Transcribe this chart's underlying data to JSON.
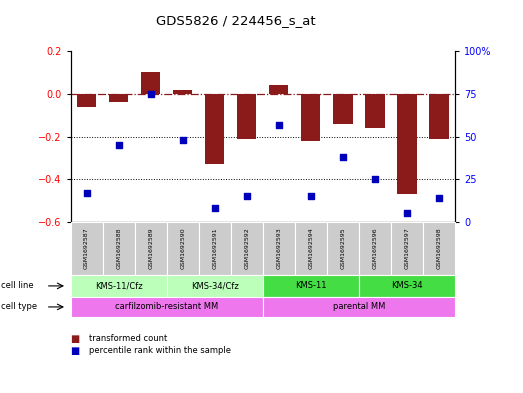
{
  "title": "GDS5826 / 224456_s_at",
  "samples": [
    "GSM1692587",
    "GSM1692588",
    "GSM1692589",
    "GSM1692590",
    "GSM1692591",
    "GSM1692592",
    "GSM1692593",
    "GSM1692594",
    "GSM1692595",
    "GSM1692596",
    "GSM1692597",
    "GSM1692598"
  ],
  "bar_values": [
    -0.06,
    -0.04,
    0.1,
    0.02,
    -0.33,
    -0.21,
    0.04,
    -0.22,
    -0.14,
    -0.16,
    -0.47,
    -0.21
  ],
  "dot_values": [
    17,
    45,
    75,
    48,
    8,
    15,
    57,
    15,
    38,
    25,
    5,
    14
  ],
  "ylim_left": [
    -0.6,
    0.2
  ],
  "ylim_right": [
    0,
    100
  ],
  "bar_color": "#8B1A1A",
  "dot_color": "#0000BB",
  "cell_line_groups": [
    {
      "label": "KMS-11/Cfz",
      "start": 0,
      "end": 3,
      "color": "#BBFFBB"
    },
    {
      "label": "KMS-34/Cfz",
      "start": 3,
      "end": 6,
      "color": "#BBFFBB"
    },
    {
      "label": "KMS-11",
      "start": 6,
      "end": 9,
      "color": "#44DD44"
    },
    {
      "label": "KMS-34",
      "start": 9,
      "end": 12,
      "color": "#44DD44"
    }
  ],
  "cell_type_groups": [
    {
      "label": "carfilzomib-resistant MM",
      "start": 0,
      "end": 6
    },
    {
      "label": "parental MM",
      "start": 6,
      "end": 12
    }
  ],
  "cell_type_color": "#EE77EE",
  "legend_items": [
    {
      "label": "transformed count",
      "color": "#8B1A1A"
    },
    {
      "label": "percentile rank within the sample",
      "color": "#0000BB"
    }
  ],
  "yticks_left": [
    -0.6,
    -0.4,
    -0.2,
    0.0,
    0.2
  ],
  "yticks_right": [
    0,
    25,
    50,
    75,
    100
  ],
  "background_color": "#FFFFFF"
}
